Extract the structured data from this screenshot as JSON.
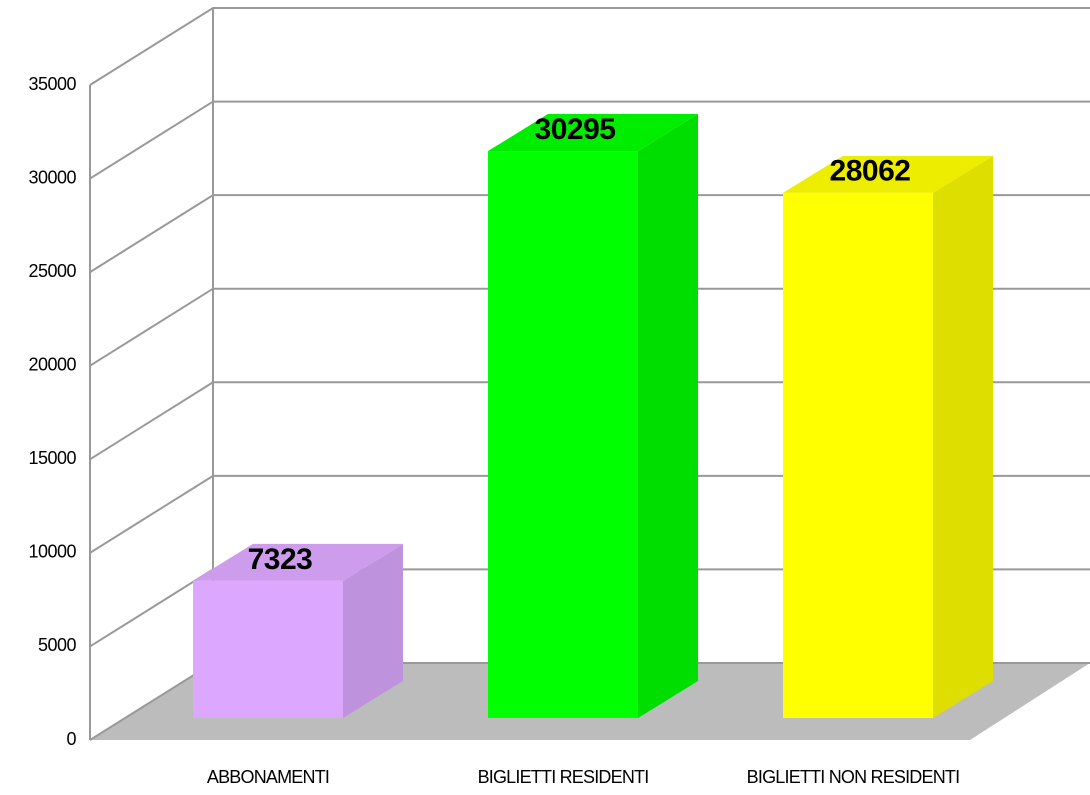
{
  "chart_data": {
    "type": "bar3d",
    "categories": [
      "ABBONAMENTI",
      "BIGLIETTI RESIDENTI",
      "BIGLIETTI NON RESIDENTI"
    ],
    "values": [
      7323,
      30295,
      28062
    ],
    "colors": [
      "#dca8ff",
      "#00ff00",
      "#ffff00"
    ],
    "ylim": [
      0,
      35000
    ],
    "yticks": [
      0,
      5000,
      10000,
      15000,
      20000,
      25000,
      30000,
      35000
    ],
    "grid": true
  }
}
